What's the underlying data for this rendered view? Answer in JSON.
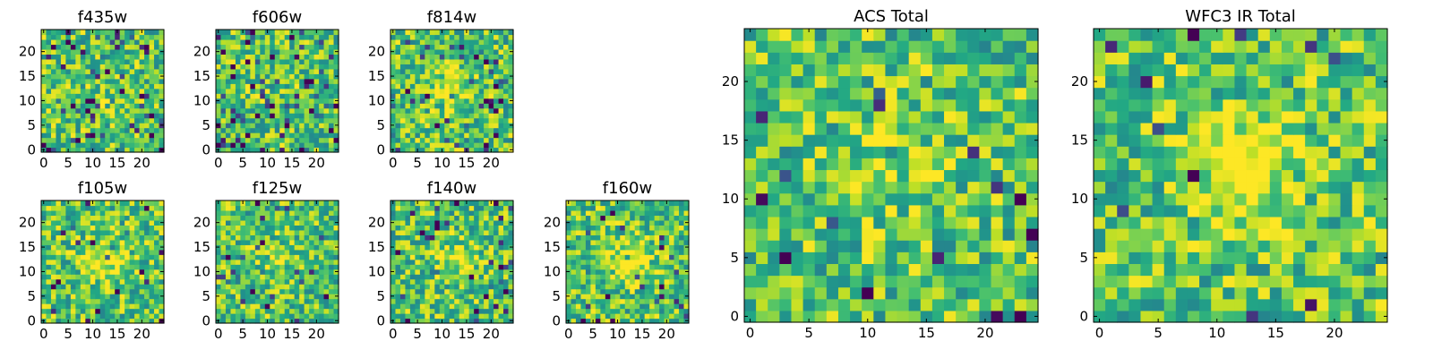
{
  "colors": {
    "background": "#ffffff",
    "axis": "#000000",
    "colormap": "viridis"
  },
  "chart_data": [
    {
      "type": "heatmap",
      "title": "f435w",
      "grid_size": 25,
      "seed": 11,
      "blob": 0.05,
      "sparsity": 0.1,
      "xticks": [
        "0",
        "5",
        "10",
        "15",
        "20"
      ],
      "yticks": [
        "0",
        "5",
        "10",
        "15",
        "20"
      ]
    },
    {
      "type": "heatmap",
      "title": "f606w",
      "grid_size": 25,
      "seed": 23,
      "blob": 0.05,
      "sparsity": 0.12,
      "xticks": [
        "0",
        "5",
        "10",
        "15",
        "20"
      ],
      "yticks": [
        "0",
        "5",
        "10",
        "15",
        "20"
      ]
    },
    {
      "type": "heatmap",
      "title": "f814w",
      "grid_size": 25,
      "seed": 37,
      "blob": 0.22,
      "sparsity": 0.08,
      "xticks": [
        "0",
        "5",
        "10",
        "15",
        "20"
      ],
      "yticks": [
        "0",
        "5",
        "10",
        "15",
        "20"
      ]
    },
    {
      "type": "heatmap",
      "title": "f105w",
      "grid_size": 25,
      "seed": 41,
      "blob": 0.3,
      "sparsity": 0.04,
      "xticks": [
        "0",
        "5",
        "10",
        "15",
        "20"
      ],
      "yticks": [
        "0",
        "5",
        "10",
        "15",
        "20"
      ]
    },
    {
      "type": "heatmap",
      "title": "f125w",
      "grid_size": 25,
      "seed": 53,
      "blob": 0.1,
      "sparsity": 0.06,
      "xticks": [
        "0",
        "5",
        "10",
        "15",
        "20"
      ],
      "yticks": [
        "0",
        "5",
        "10",
        "15",
        "20"
      ]
    },
    {
      "type": "heatmap",
      "title": "f140w",
      "grid_size": 25,
      "seed": 67,
      "blob": 0.18,
      "sparsity": 0.05,
      "xticks": [
        "0",
        "5",
        "10",
        "15",
        "20"
      ],
      "yticks": [
        "0",
        "5",
        "10",
        "15",
        "20"
      ]
    },
    {
      "type": "heatmap",
      "title": "f160w",
      "grid_size": 25,
      "seed": 79,
      "blob": 0.3,
      "sparsity": 0.05,
      "xticks": [
        "0",
        "5",
        "10",
        "15",
        "20"
      ],
      "yticks": [
        "0",
        "5",
        "10",
        "15",
        "20"
      ]
    },
    {
      "type": "heatmap",
      "title": "ACS Total",
      "grid_size": 25,
      "seed": 83,
      "blob": 0.12,
      "sparsity": 0.03,
      "xticks": [
        "0",
        "5",
        "10",
        "15",
        "20"
      ],
      "yticks": [
        "0",
        "5",
        "10",
        "15",
        "20"
      ]
    },
    {
      "type": "heatmap",
      "title": "WFC3 IR Total",
      "grid_size": 25,
      "seed": 97,
      "blob": 0.38,
      "sparsity": 0.02,
      "xticks": [
        "0",
        "5",
        "10",
        "15",
        "20"
      ],
      "yticks": [
        "0",
        "5",
        "10",
        "15",
        "20"
      ]
    }
  ]
}
